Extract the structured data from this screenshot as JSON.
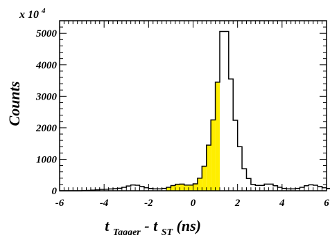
{
  "chart_data": {
    "type": "bar",
    "title": "",
    "xlabel": {
      "base": "t",
      "sub1": "Tagger",
      "mid": " - t",
      "sub2": "ST",
      "tail": " (ns)"
    },
    "ylabel": "Counts",
    "y_scale_note": {
      "prefix": "x 10",
      "exponent": "4"
    },
    "xlim": [
      -6,
      6
    ],
    "ylim": [
      0,
      5400
    ],
    "x_ticks": [
      -6,
      -4,
      -2,
      0,
      2,
      4,
      6
    ],
    "y_ticks": [
      0,
      1000,
      2000,
      3000,
      4000,
      5000
    ],
    "bin_width": 0.2,
    "bin_start": -6,
    "fill_range": [
      -1.2,
      1.2
    ],
    "colors": {
      "highlight_fill": "#ffee00",
      "line": "#000000",
      "background": "#ffffff"
    },
    "values": [
      0,
      0,
      0,
      0,
      0,
      5,
      12,
      20,
      30,
      45,
      50,
      58,
      65,
      80,
      110,
      150,
      185,
      175,
      135,
      95,
      70,
      60,
      60,
      75,
      110,
      165,
      205,
      210,
      180,
      180,
      220,
      400,
      780,
      1450,
      2250,
      3450,
      5060,
      5060,
      3550,
      2240,
      1400,
      700,
      390,
      200,
      170,
      170,
      210,
      210,
      160,
      110,
      75,
      60,
      60,
      75,
      110,
      160,
      190,
      175,
      135,
      95,
      70,
      55,
      45,
      35,
      30,
      22,
      15,
      10,
      5,
      3
    ],
    "grid": false,
    "legend": "none"
  }
}
